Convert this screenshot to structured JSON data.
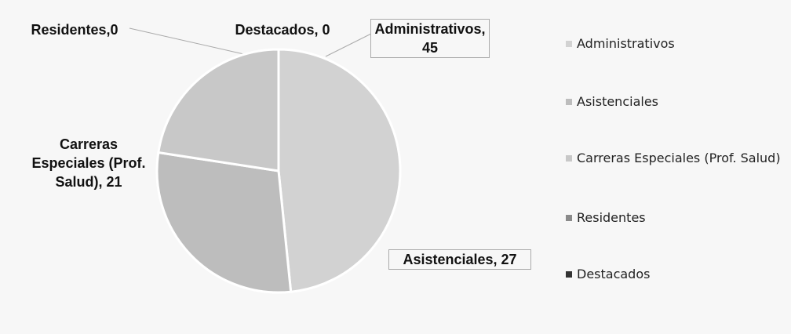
{
  "chart_data": {
    "type": "pie",
    "categories": [
      "Administrativos",
      "Asistenciales",
      "Carreras Especiales (Prof. Salud)",
      "Residentes",
      "Destacados"
    ],
    "values": [
      45,
      27,
      21,
      0,
      0
    ],
    "value_labels": [
      "Administrativos, 45",
      "Asistenciales, 27",
      "Carreras Especiales (Prof. Salud), 21",
      "Residentes,0",
      "Destacados, 0"
    ],
    "colors": [
      "#d2d2d2",
      "#bdbdbd",
      "#c8c8c8",
      "#8a8a8a",
      "#333333"
    ],
    "legend": "right"
  }
}
